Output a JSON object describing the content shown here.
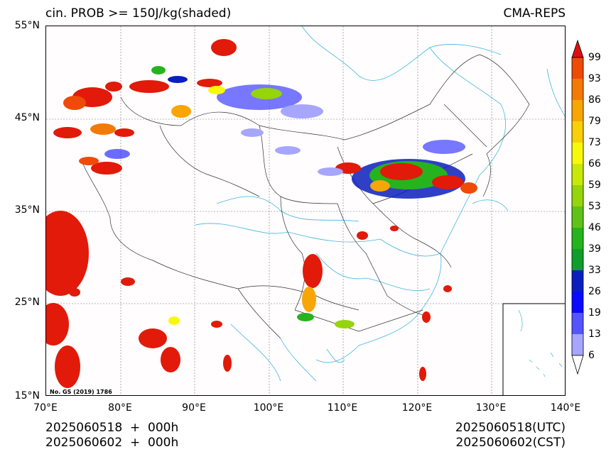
{
  "header": {
    "title_left": "cin. PROB >= 150J/kg(shaded)",
    "title_right": "CMA-REPS"
  },
  "map": {
    "lat_ticks": [
      "55°N",
      "45°N",
      "35°N",
      "25°N",
      "15°N"
    ],
    "lon_ticks": [
      "70°E",
      "80°E",
      "90°E",
      "100°E",
      "110°E",
      "120°E",
      "130°E",
      "140°E"
    ],
    "review_number": "No. GS (2019) 1786",
    "land_color": "#fffdfe",
    "boundary_color": "#333333",
    "river_color": "#3fb6e0"
  },
  "colorbar": {
    "levels": [
      "6",
      "13",
      "19",
      "26",
      "33",
      "39",
      "46",
      "53",
      "59",
      "66",
      "73",
      "79",
      "86",
      "93",
      "99"
    ],
    "colors": [
      "#a6a6ff",
      "#5555ff",
      "#0a0aff",
      "#0a1fbd",
      "#109d2a",
      "#27b31e",
      "#60c218",
      "#96d40c",
      "#c8e80a",
      "#f8f80a",
      "#f8cf08",
      "#f8a506",
      "#f27a05",
      "#f04a08",
      "#e11a0a",
      "#e00f0f"
    ]
  },
  "footer": {
    "left_line1": "2025060518  +  000h",
    "left_line2": "2025060602  +  000h",
    "right_line1": "2025060518(UTC)",
    "right_line2": "2025060602(CST)"
  }
}
